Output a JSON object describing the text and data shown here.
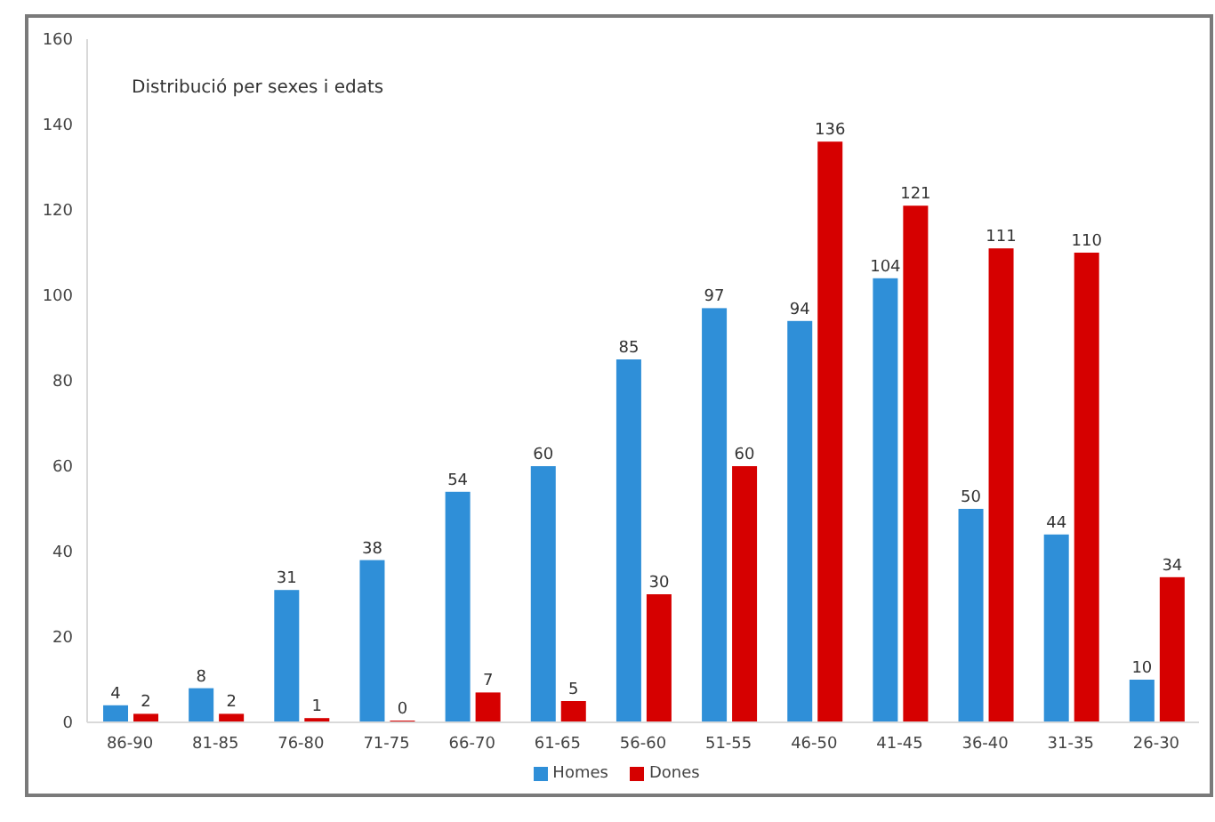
{
  "chart_data": {
    "type": "bar",
    "title": "Distribució per sexes i edats",
    "categories": [
      "86-90",
      "81-85",
      "76-80",
      "71-75",
      "66-70",
      "61-65",
      "56-60",
      "51-55",
      "46-50",
      "41-45",
      "36-40",
      "31-35",
      "26-30"
    ],
    "series": [
      {
        "name": "Homes",
        "color": "#2f8fd8",
        "values": [
          4,
          8,
          31,
          38,
          54,
          60,
          85,
          97,
          94,
          104,
          50,
          44,
          10
        ]
      },
      {
        "name": "Dones",
        "color": "#d60000",
        "values": [
          2,
          2,
          1,
          0,
          7,
          5,
          30,
          60,
          136,
          121,
          111,
          110,
          34
        ]
      }
    ],
    "ylim": [
      0,
      160
    ],
    "yticks": [
      0,
      20,
      40,
      60,
      80,
      100,
      120,
      140,
      160
    ],
    "data_labels": true,
    "legend": "bottom"
  }
}
